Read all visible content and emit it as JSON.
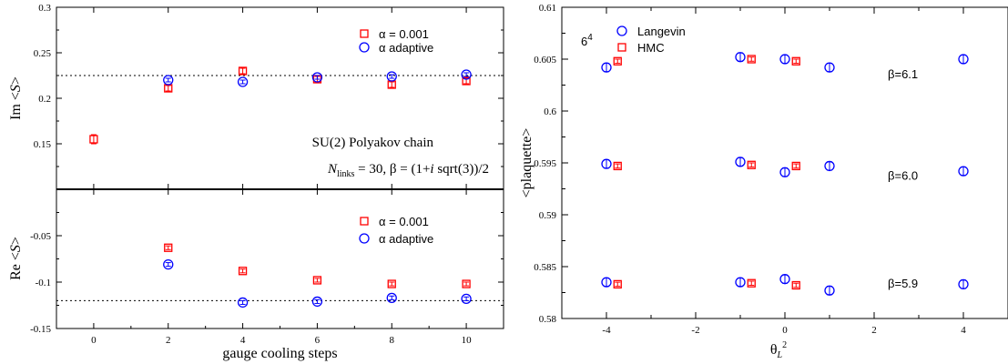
{
  "chart_data": [
    {
      "type": "scatter",
      "panel": "top-left",
      "ylabel": "Im <S>",
      "xlim": [
        -1,
        11
      ],
      "ylim": [
        0.1,
        0.3
      ],
      "yticks": [
        "0.15",
        "0.2",
        "0.25",
        "0.3"
      ],
      "reference_line": 0.225,
      "legend_placement": "top-right",
      "annotations": [
        "SU(2) Polyakov chain",
        "N_links = 30, β = (1+i sqrt(3))/2"
      ],
      "series": [
        {
          "name": "α = 0.001",
          "color": "#ff0000",
          "marker": "square",
          "x": [
            0,
            2,
            4,
            6,
            8,
            10
          ],
          "y": [
            0.155,
            0.211,
            0.23,
            0.221,
            0.215,
            0.219
          ],
          "err": [
            0.005,
            0.003,
            0.003,
            0.003,
            0.003,
            0.003
          ]
        },
        {
          "name": "α adaptive",
          "color": "#0000ff",
          "marker": "circle",
          "x": [
            2,
            4,
            6,
            8,
            10
          ],
          "y": [
            0.22,
            0.218,
            0.223,
            0.224,
            0.226
          ],
          "err": [
            0.002,
            0.002,
            0.002,
            0.002,
            0.002
          ]
        }
      ]
    },
    {
      "type": "scatter",
      "panel": "bottom-left",
      "xlabel": "gauge cooling steps",
      "ylabel": "Re <S>",
      "xlim": [
        -1,
        11
      ],
      "ylim": [
        -0.15,
        0
      ],
      "xticks": [
        "0",
        "2",
        "4",
        "6",
        "8",
        "10"
      ],
      "yticks": [
        "-0.15",
        "-0.1",
        "-0.05"
      ],
      "reference_line": -0.12,
      "legend_placement": "top-right",
      "series": [
        {
          "name": "α = 0.001",
          "color": "#ff0000",
          "marker": "square",
          "x": [
            2,
            4,
            6,
            8,
            10
          ],
          "y": [
            -0.063,
            -0.088,
            -0.098,
            -0.102,
            -0.102
          ],
          "err": [
            0.002,
            0.002,
            0.002,
            0.002,
            0.002
          ]
        },
        {
          "name": "α adaptive",
          "color": "#0000ff",
          "marker": "circle",
          "x": [
            2,
            4,
            6,
            8,
            10
          ],
          "y": [
            -0.081,
            -0.122,
            -0.121,
            -0.117,
            -0.118
          ],
          "err": [
            0.002,
            0.002,
            0.002,
            0.002,
            0.002
          ]
        }
      ]
    },
    {
      "type": "scatter",
      "panel": "right",
      "xlabel": "θ_L^2",
      "ylabel": "<plaquette>",
      "xlim": [
        -5,
        5
      ],
      "ylim": [
        0.58,
        0.61
      ],
      "xticks": [
        "-4",
        "-2",
        "0",
        "2",
        "4"
      ],
      "yticks": [
        "0.58",
        "0.585",
        "0.59",
        "0.595",
        "0.6",
        "0.605",
        "0.61"
      ],
      "lattice_label": "6^4",
      "legend_placement": "top-left",
      "beta_labels": [
        "β=6.1",
        "β=6.0",
        "β=5.9"
      ],
      "series": [
        {
          "name": "Langevin",
          "color": "#0000ff",
          "marker": "circle",
          "x": [
            -4,
            -1,
            0,
            1,
            4,
            -4,
            -1,
            0,
            1,
            4,
            -4,
            -1,
            0,
            1,
            4
          ],
          "y": [
            0.6042,
            0.6052,
            0.605,
            0.6042,
            0.605,
            0.5949,
            0.5951,
            0.5941,
            0.5947,
            0.5942,
            0.5835,
            0.5835,
            0.5838,
            0.5827,
            0.5833
          ],
          "err": [
            0.0004,
            0.0004,
            0.0004,
            0.0004,
            0.0004,
            0.0004,
            0.0004,
            0.0004,
            0.0004,
            0.0004,
            0.0004,
            0.0004,
            0.0004,
            0.0004,
            0.0004
          ]
        },
        {
          "name": "HMC",
          "color": "#ff0000",
          "marker": "square",
          "x": [
            -3.75,
            -0.75,
            0.25,
            -3.75,
            -0.75,
            0.25,
            -3.75,
            -0.75,
            0.25
          ],
          "y": [
            0.6048,
            0.605,
            0.6048,
            0.5947,
            0.5948,
            0.5947,
            0.5833,
            0.5834,
            0.5832
          ],
          "err": [
            0.0002,
            0.0002,
            0.0002,
            0.0002,
            0.0002,
            0.0002,
            0.0002,
            0.0002,
            0.0002
          ]
        }
      ]
    }
  ]
}
